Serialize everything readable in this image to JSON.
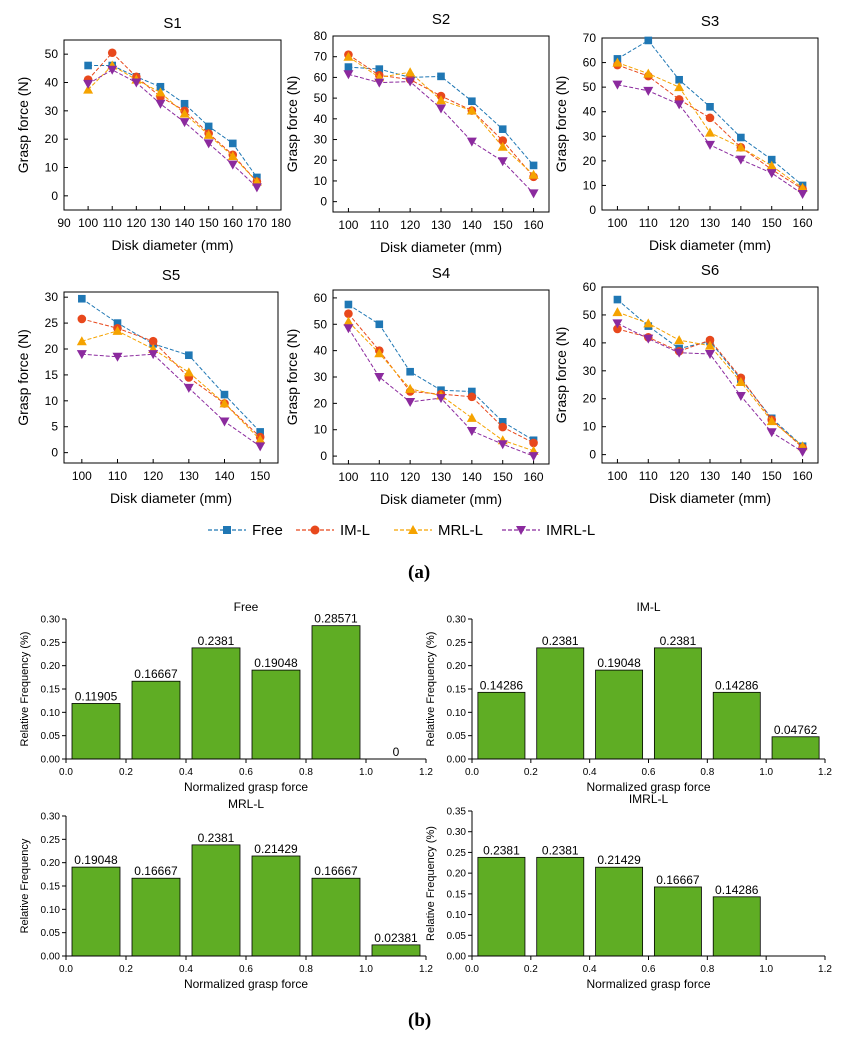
{
  "captions": {
    "a": "(a)",
    "b": "(b)"
  },
  "legend": [
    {
      "name": "Free",
      "color": "#1f77b4",
      "marker": "square"
    },
    {
      "name": "IM-L",
      "color": "#e8481c",
      "marker": "circle"
    },
    {
      "name": "MRL-L",
      "color": "#f5a300",
      "marker": "triangle-up"
    },
    {
      "name": "IMRL-L",
      "color": "#8b2a9e",
      "marker": "triangle-down"
    }
  ],
  "chart_data": [
    {
      "type": "line",
      "title": "S1",
      "xlabel": "Disk diameter (mm)",
      "ylabel": "Grasp force (N)",
      "x": [
        100,
        110,
        120,
        130,
        140,
        150,
        160,
        170
      ],
      "xlim": [
        90,
        180
      ],
      "xticks": [
        90,
        100,
        110,
        120,
        130,
        140,
        150,
        160,
        170,
        180
      ],
      "ylim": [
        -5,
        55
      ],
      "yticks": [
        0,
        10,
        20,
        30,
        40,
        50
      ],
      "series": [
        {
          "name": "Free",
          "values": [
            46,
            46,
            42,
            38.5,
            32.5,
            24.5,
            18.5,
            6.5
          ]
        },
        {
          "name": "IM-L",
          "values": [
            41,
            50.5,
            42,
            35,
            30,
            22,
            14.5,
            5
          ]
        },
        {
          "name": "MRL-L",
          "values": [
            37.5,
            46,
            41,
            36.5,
            29,
            21.5,
            14,
            5
          ]
        },
        {
          "name": "IMRL-L",
          "values": [
            39.5,
            44.5,
            40,
            32.5,
            26,
            18.5,
            11,
            3
          ]
        }
      ]
    },
    {
      "type": "line",
      "title": "S2",
      "xlabel": "Disk diameter (mm)",
      "ylabel": "Grasp force (N)",
      "x": [
        100,
        110,
        120,
        130,
        140,
        150,
        160
      ],
      "xlim": [
        95,
        165
      ],
      "xticks": [
        100,
        110,
        120,
        130,
        140,
        150,
        160
      ],
      "ylim": [
        -5,
        80
      ],
      "yticks": [
        0,
        10,
        20,
        30,
        40,
        50,
        60,
        70,
        80
      ],
      "series": [
        {
          "name": "Free",
          "values": [
            65,
            64,
            60,
            60.5,
            48.5,
            35,
            17.5
          ]
        },
        {
          "name": "IM-L",
          "values": [
            71,
            61,
            59,
            51,
            44,
            29.5,
            12
          ]
        },
        {
          "name": "MRL-L",
          "values": [
            70,
            60,
            62.5,
            49,
            44,
            26.5,
            13
          ]
        },
        {
          "name": "IMRL-L",
          "values": [
            61.5,
            57.5,
            58,
            45,
            29,
            19.5,
            4
          ]
        }
      ]
    },
    {
      "type": "line",
      "title": "S3",
      "xlabel": "Disk diameter (mm)",
      "ylabel": "Grasp force (N)",
      "x": [
        100,
        110,
        120,
        130,
        140,
        150,
        160
      ],
      "xlim": [
        95,
        165
      ],
      "xticks": [
        100,
        110,
        120,
        130,
        140,
        150,
        160
      ],
      "ylim": [
        0,
        70
      ],
      "yticks": [
        0,
        10,
        20,
        30,
        40,
        50,
        60,
        70
      ],
      "series": [
        {
          "name": "Free",
          "values": [
            61.5,
            69,
            53,
            42,
            29.5,
            20.5,
            10
          ]
        },
        {
          "name": "IM-L",
          "values": [
            59,
            54.5,
            45,
            37.5,
            25.5,
            16.5,
            8.5
          ]
        },
        {
          "name": "MRL-L",
          "values": [
            60,
            55.5,
            50,
            31.5,
            25.5,
            18,
            9
          ]
        },
        {
          "name": "IMRL-L",
          "values": [
            51,
            48.5,
            43,
            26.5,
            20.5,
            15,
            6.5
          ]
        }
      ]
    },
    {
      "type": "line",
      "title": "S5",
      "xlabel": "Disk diameter (mm)",
      "ylabel": "Grasp force (N)",
      "x": [
        100,
        110,
        120,
        130,
        140,
        150
      ],
      "xlim": [
        95,
        155
      ],
      "xticks": [
        100,
        110,
        120,
        130,
        140,
        150
      ],
      "ylim": [
        -2,
        31
      ],
      "yticks": [
        0,
        5,
        10,
        15,
        20,
        25,
        30
      ],
      "series": [
        {
          "name": "Free",
          "values": [
            29.7,
            25,
            21,
            18.8,
            11.2,
            4
          ]
        },
        {
          "name": "IM-L",
          "values": [
            25.8,
            24,
            21.5,
            14.5,
            9.5,
            3
          ]
        },
        {
          "name": "MRL-L",
          "values": [
            21.5,
            23.5,
            20,
            15.5,
            9.5,
            2.5
          ]
        },
        {
          "name": "IMRL-L",
          "values": [
            19,
            18.5,
            19,
            12.5,
            6,
            1.2
          ]
        }
      ]
    },
    {
      "type": "line",
      "title": "S4",
      "xlabel": "Disk diameter (mm)",
      "ylabel": "Grasp force (N)",
      "x": [
        100,
        110,
        120,
        130,
        140,
        150,
        160
      ],
      "xlim": [
        95,
        165
      ],
      "xticks": [
        100,
        110,
        120,
        130,
        140,
        150,
        160
      ],
      "ylim": [
        -3,
        63
      ],
      "yticks": [
        0,
        10,
        20,
        30,
        40,
        50,
        60
      ],
      "series": [
        {
          "name": "Free",
          "values": [
            57.5,
            50,
            32,
            25,
            24.5,
            13,
            6
          ]
        },
        {
          "name": "IM-L",
          "values": [
            54,
            40,
            24.5,
            23.5,
            22.5,
            11,
            5
          ]
        },
        {
          "name": "MRL-L",
          "values": [
            51,
            39,
            25.5,
            23,
            14.5,
            6,
            2
          ]
        },
        {
          "name": "IMRL-L",
          "values": [
            48.5,
            30,
            20.5,
            22,
            9.5,
            4.5,
            0
          ]
        }
      ]
    },
    {
      "type": "line",
      "title": "S6",
      "xlabel": "Disk diameter (mm)",
      "ylabel": "Grasp force (N)",
      "x": [
        100,
        110,
        120,
        130,
        140,
        150,
        160
      ],
      "xlim": [
        95,
        165
      ],
      "xticks": [
        100,
        110,
        120,
        130,
        140,
        150,
        160
      ],
      "ylim": [
        -3,
        60
      ],
      "yticks": [
        0,
        10,
        20,
        30,
        40,
        50,
        60
      ],
      "series": [
        {
          "name": "Free",
          "values": [
            55.5,
            46,
            38,
            40.5,
            27,
            13,
            3
          ]
        },
        {
          "name": "IM-L",
          "values": [
            45,
            42,
            37,
            41,
            27.5,
            12.5,
            2.5
          ]
        },
        {
          "name": "MRL-L",
          "values": [
            51,
            47,
            41,
            39,
            26,
            12,
            3
          ]
        },
        {
          "name": "IMRL-L",
          "values": [
            47,
            41.5,
            36.5,
            36,
            21,
            8,
            1
          ]
        }
      ]
    },
    {
      "type": "bar",
      "title": "Free",
      "xlabel": "Normalized grasp force",
      "ylabel": "Relative Frequency (%)",
      "bin_centers": [
        0.1,
        0.3,
        0.5,
        0.7,
        0.9,
        1.1
      ],
      "bin_width": 0.16,
      "values": [
        0.11905,
        0.16667,
        0.2381,
        0.19048,
        0.28571,
        0
      ],
      "labels": [
        "0.11905",
        "0.16667",
        "0.2381",
        "0.19048",
        "0.28571",
        "0"
      ],
      "xlim": [
        0,
        1.2
      ],
      "xticks": [
        "0.0",
        "0.2",
        "0.4",
        "0.6",
        "0.8",
        "1.0",
        "1.2"
      ],
      "ylim": [
        0,
        0.3
      ],
      "yticks": [
        "0.00",
        "0.05",
        "0.10",
        "0.15",
        "0.20",
        "0.25",
        "0.30"
      ]
    },
    {
      "type": "bar",
      "title": "IM-L",
      "xlabel": "Normalized grasp force",
      "ylabel": "Relative Frequency (%)",
      "bin_centers": [
        0.1,
        0.3,
        0.5,
        0.7,
        0.9,
        1.1
      ],
      "bin_width": 0.16,
      "values": [
        0.14286,
        0.2381,
        0.19048,
        0.2381,
        0.14286,
        0.04762
      ],
      "labels": [
        "0.14286",
        "0.2381",
        "0.19048",
        "0.2381",
        "0.14286",
        "0.04762"
      ],
      "xlim": [
        0,
        1.2
      ],
      "xticks": [
        "0.0",
        "0.2",
        "0.4",
        "0.6",
        "0.8",
        "1.0",
        "1.2"
      ],
      "ylim": [
        0,
        0.3
      ],
      "yticks": [
        "0.00",
        "0.05",
        "0.10",
        "0.15",
        "0.20",
        "0.25",
        "0.30"
      ]
    },
    {
      "type": "bar",
      "title": "MRL-L",
      "xlabel": "Normalized grasp force",
      "ylabel": "Relative Frequency",
      "bin_centers": [
        0.1,
        0.3,
        0.5,
        0.7,
        0.9,
        1.1
      ],
      "bin_width": 0.16,
      "values": [
        0.19048,
        0.16667,
        0.2381,
        0.21429,
        0.16667,
        0.02381
      ],
      "labels": [
        "0.19048",
        "0.16667",
        "0.2381",
        "0.21429",
        "0.16667",
        "0.02381"
      ],
      "xlim": [
        0,
        1.2
      ],
      "xticks": [
        "0.0",
        "0.2",
        "0.4",
        "0.6",
        "0.8",
        "1.0",
        "1.2"
      ],
      "ylim": [
        0,
        0.3
      ],
      "yticks": [
        "0.00",
        "0.05",
        "0.10",
        "0.15",
        "0.20",
        "0.25",
        "0.30"
      ]
    },
    {
      "type": "bar",
      "title": "IMRL-L",
      "xlabel": "Normalized grasp force",
      "ylabel": "Relative Frequency (%)",
      "bin_centers": [
        0.1,
        0.3,
        0.5,
        0.7,
        0.9
      ],
      "bin_width": 0.16,
      "values": [
        0.2381,
        0.2381,
        0.21429,
        0.16667,
        0.14286
      ],
      "labels": [
        "0.2381",
        "0.2381",
        "0.21429",
        "0.16667",
        "0.14286"
      ],
      "xlim": [
        0,
        1.2
      ],
      "xticks": [
        "0.0",
        "0.2",
        "0.4",
        "0.6",
        "0.8",
        "1.0",
        "1.2"
      ],
      "ylim": [
        0,
        0.35
      ],
      "yticks": [
        "0.00",
        "0.05",
        "0.10",
        "0.15",
        "0.20",
        "0.25",
        "0.30",
        "0.35"
      ]
    }
  ],
  "bar_color": "#5fad24"
}
